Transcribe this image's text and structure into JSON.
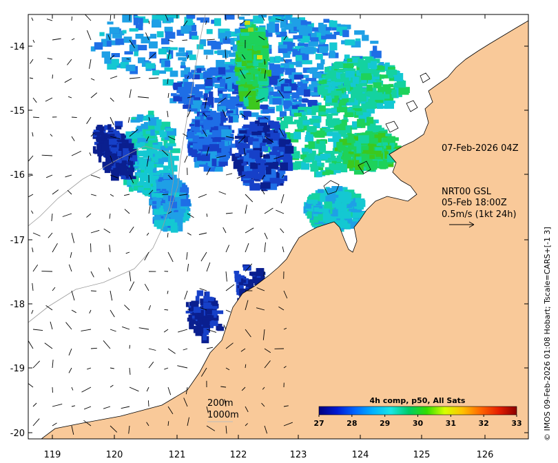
{
  "map": {
    "lon_ticks": [
      "119",
      "120",
      "121",
      "122",
      "123",
      "124",
      "125",
      "126"
    ],
    "lat_ticks": [
      "-14",
      "-15",
      "-16",
      "-17",
      "-18",
      "-19",
      "-20"
    ],
    "land_color": "#f9c999",
    "coast_color": "#000000",
    "contour_color": "#9a9a9a"
  },
  "annotations": {
    "analysis_time": "07-Feb-2026 04Z",
    "current_model": "NRT00 GSL",
    "current_time": "05-Feb 18:00Z",
    "current_scale": "0.5m/s (1kt 24h)",
    "contour_200": "200m",
    "contour_1000": "1000m"
  },
  "colorbar": {
    "title": "4h comp, p50, All Sats",
    "labels": [
      "27",
      "28",
      "29",
      "30",
      "31",
      "32",
      "33"
    ],
    "colors": [
      "#00007f",
      "#0019d2",
      "#0066ff",
      "#00b2ff",
      "#19e6e6",
      "#00cc66",
      "#33dd00",
      "#d7ff00",
      "#ffc000",
      "#ff6600",
      "#e61e00",
      "#8b0000"
    ]
  },
  "sst_palette": [
    "#0a1f8f",
    "#1640c8",
    "#1e6ee6",
    "#1ea0e6",
    "#14c8d2",
    "#14d2a0",
    "#1ed25a",
    "#3cc81e"
  ],
  "credit": "© IMOS 09-Feb-2026 01:08 Hobart; Tscale=CARS+[-1 3]"
}
